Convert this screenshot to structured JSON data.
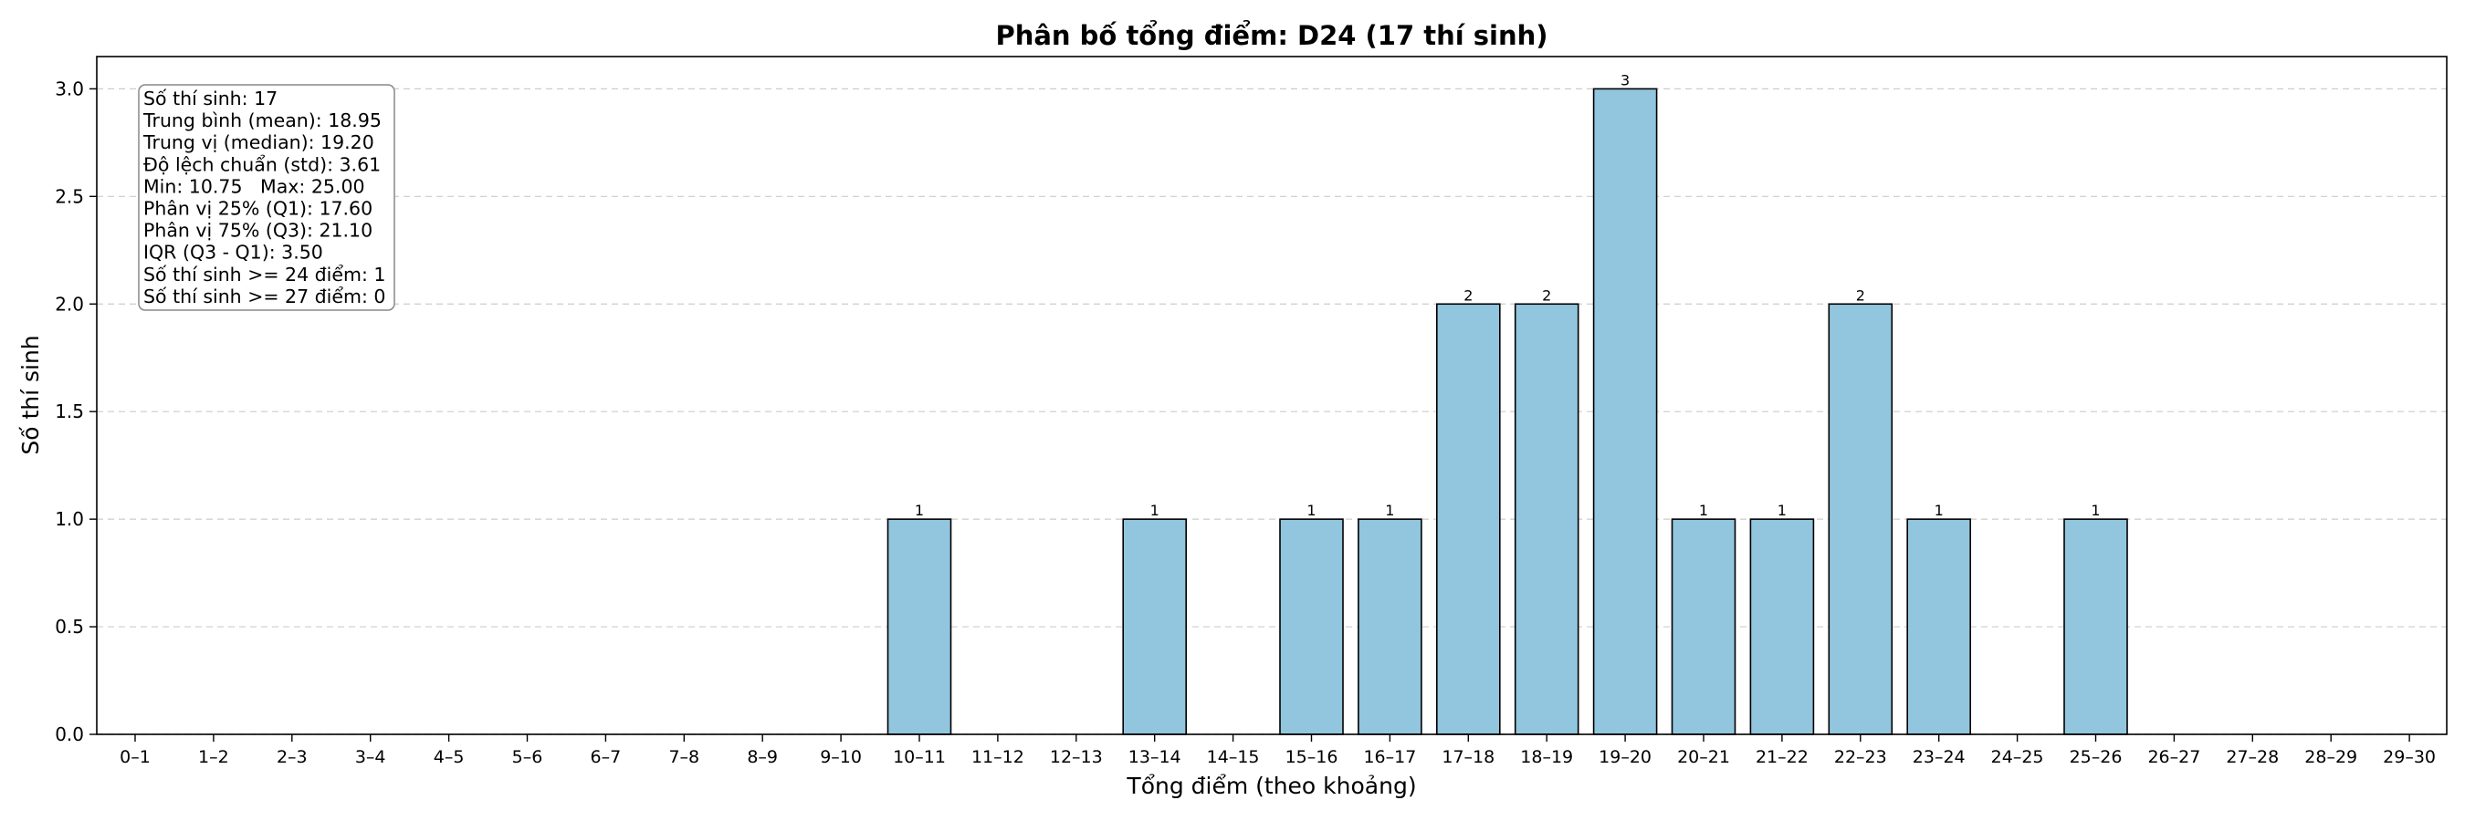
{
  "chart_data": {
    "type": "bar",
    "title": "Phân bố tổng điểm: D24 (17 thí sinh)",
    "xlabel": "Tổng điểm (theo khoảng)",
    "ylabel": "Số thí sinh",
    "categories": [
      "0–1",
      "1–2",
      "2–3",
      "3–4",
      "4–5",
      "5–6",
      "6–7",
      "7–8",
      "8–9",
      "9–10",
      "10–11",
      "11–12",
      "12–13",
      "13–14",
      "14–15",
      "15–16",
      "16–17",
      "17–18",
      "18–19",
      "19–20",
      "20–21",
      "21–22",
      "22–23",
      "23–24",
      "24–25",
      "25–26",
      "26–27",
      "27–28",
      "28–29",
      "29–30"
    ],
    "values": [
      0,
      0,
      0,
      0,
      0,
      0,
      0,
      0,
      0,
      0,
      1,
      0,
      0,
      1,
      0,
      1,
      1,
      2,
      2,
      3,
      1,
      1,
      2,
      1,
      0,
      1,
      0,
      0,
      0,
      0
    ],
    "ylim": [
      0,
      3.15
    ],
    "yticks": [
      "0.0",
      "0.5",
      "1.0",
      "1.5",
      "2.0",
      "2.5",
      "3.0"
    ],
    "grid": true,
    "bar_color": "#92c5de",
    "bar_edge_color": "#000000",
    "stats_box": [
      "Số thí sinh: 17",
      "Trung bình (mean): 18.95",
      "Trung vị (median): 19.20",
      "Độ lệch chuẩn (std): 3.61",
      "Min: 10.75   Max: 25.00",
      "Phân vị 25% (Q1): 17.60",
      "Phân vị 75% (Q3): 21.10",
      "IQR (Q3 - Q1): 3.50",
      "Số thí sinh >= 24 điểm: 1",
      "Số thí sinh >= 27 điểm: 0"
    ]
  }
}
